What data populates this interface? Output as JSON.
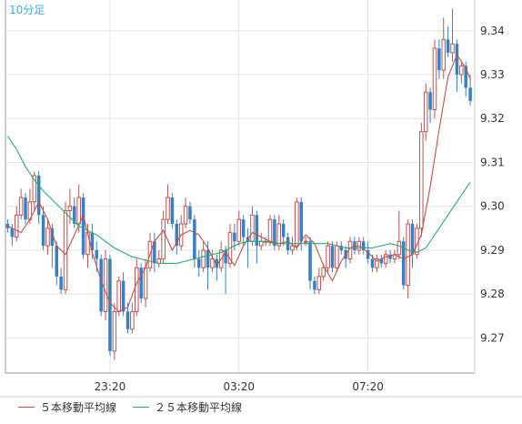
{
  "chart_data": {
    "type": "candlestick",
    "timeframe_label": "10分足",
    "y_ticks": [
      9.27,
      9.28,
      9.29,
      9.3,
      9.31,
      9.32,
      9.33,
      9.34
    ],
    "y_tick_labels": [
      "9.27",
      "9.28",
      "9.29",
      "9.30",
      "9.31",
      "9.32",
      "9.33",
      "9.34"
    ],
    "ylim": [
      9.262,
      9.347
    ],
    "x_tick_labels": [
      "23:20",
      "03:20",
      "07:20"
    ],
    "x_tick_candle_index": [
      23,
      52,
      81
    ],
    "n_candles": 105,
    "grid": true,
    "legend_position": "bottom-left",
    "colors": {
      "up": "#b85450",
      "down": "#3a7fc1",
      "ma5": "#c0504d",
      "ma25": "#2aa879",
      "timeframe": "#3aaed8"
    },
    "series": [
      {
        "name": "５本移動平均線",
        "color": "#c0504d",
        "points": [
          [
            0,
            9.2955
          ],
          [
            3,
            9.294
          ],
          [
            5,
            9.297
          ],
          [
            7,
            9.301
          ],
          [
            9,
            9.297
          ],
          [
            11,
            9.291
          ],
          [
            13,
            9.289
          ],
          [
            15,
            9.2935
          ],
          [
            17,
            9.298
          ],
          [
            19,
            9.2895
          ],
          [
            21,
            9.283
          ],
          [
            23,
            9.278
          ],
          [
            25,
            9.276
          ],
          [
            27,
            9.277
          ],
          [
            29,
            9.2825
          ],
          [
            31,
            9.286
          ],
          [
            33,
            9.292
          ],
          [
            35,
            9.2945
          ],
          [
            37,
            9.29
          ],
          [
            39,
            9.2935
          ],
          [
            41,
            9.2945
          ],
          [
            43,
            9.2935
          ],
          [
            45,
            9.2905
          ],
          [
            47,
            9.2865
          ],
          [
            49,
            9.2895
          ],
          [
            51,
            9.2865
          ],
          [
            53,
            9.291
          ],
          [
            55,
            9.294
          ],
          [
            57,
            9.293
          ],
          [
            59,
            9.292
          ],
          [
            61,
            9.2915
          ],
          [
            63,
            9.292
          ],
          [
            65,
            9.2905
          ],
          [
            67,
            9.2935
          ],
          [
            69,
            9.2915
          ],
          [
            71,
            9.2865
          ],
          [
            73,
            9.283
          ],
          [
            75,
            9.2875
          ],
          [
            77,
            9.2905
          ],
          [
            79,
            9.291
          ],
          [
            81,
            9.2895
          ],
          [
            83,
            9.2875
          ],
          [
            85,
            9.2885
          ],
          [
            87,
            9.289
          ],
          [
            89,
            9.288
          ],
          [
            91,
            9.289
          ],
          [
            93,
            9.2935
          ],
          [
            95,
            9.3045
          ],
          [
            97,
            9.3175
          ],
          [
            99,
            9.3295
          ],
          [
            101,
            9.3345
          ],
          [
            103,
            9.3315
          ],
          [
            104,
            9.329
          ]
        ]
      },
      {
        "name": "２５本移動平均線",
        "color": "#2aa879",
        "points": [
          [
            0,
            9.316
          ],
          [
            2,
            9.313
          ],
          [
            4,
            9.309
          ],
          [
            6,
            9.306
          ],
          [
            8,
            9.3035
          ],
          [
            10,
            9.3015
          ],
          [
            12,
            9.2995
          ],
          [
            14,
            9.2975
          ],
          [
            16,
            9.2955
          ],
          [
            18,
            9.2945
          ],
          [
            20,
            9.2935
          ],
          [
            22,
            9.292
          ],
          [
            24,
            9.2905
          ],
          [
            26,
            9.2895
          ],
          [
            28,
            9.2885
          ],
          [
            30,
            9.288
          ],
          [
            32,
            9.2875
          ],
          [
            34,
            9.287
          ],
          [
            36,
            9.287
          ],
          [
            38,
            9.287
          ],
          [
            40,
            9.2875
          ],
          [
            42,
            9.288
          ],
          [
            44,
            9.2885
          ],
          [
            46,
            9.289
          ],
          [
            48,
            9.2895
          ],
          [
            50,
            9.2905
          ],
          [
            52,
            9.2915
          ],
          [
            54,
            9.292
          ],
          [
            56,
            9.292
          ],
          [
            58,
            9.292
          ],
          [
            60,
            9.2915
          ],
          [
            62,
            9.2915
          ],
          [
            64,
            9.2915
          ],
          [
            66,
            9.2915
          ],
          [
            68,
            9.2915
          ],
          [
            70,
            9.2915
          ],
          [
            72,
            9.2915
          ],
          [
            74,
            9.291
          ],
          [
            76,
            9.2905
          ],
          [
            78,
            9.2905
          ],
          [
            80,
            9.2905
          ],
          [
            82,
            9.2905
          ],
          [
            84,
            9.291
          ],
          [
            86,
            9.2915
          ],
          [
            88,
            9.291
          ],
          [
            90,
            9.29
          ],
          [
            92,
            9.2895
          ],
          [
            94,
            9.2905
          ],
          [
            96,
            9.2935
          ],
          [
            98,
            9.2965
          ],
          [
            100,
            9.2995
          ],
          [
            102,
            9.3025
          ],
          [
            104,
            9.3055
          ]
        ]
      }
    ],
    "candles": [
      [
        9.296,
        9.295,
        9.297,
        9.294
      ],
      [
        9.295,
        9.293,
        9.296,
        9.291
      ],
      [
        9.293,
        9.298,
        9.3,
        9.292
      ],
      [
        9.298,
        9.302,
        9.304,
        9.297
      ],
      [
        9.302,
        9.297,
        9.303,
        9.296
      ],
      [
        9.297,
        9.301,
        9.304,
        9.296
      ],
      [
        9.301,
        9.307,
        9.308,
        9.299
      ],
      [
        9.307,
        9.298,
        9.308,
        9.296
      ],
      [
        9.298,
        9.291,
        9.3,
        9.29
      ],
      [
        9.291,
        9.295,
        9.297,
        9.289
      ],
      [
        9.295,
        9.291,
        9.296,
        9.286
      ],
      [
        9.291,
        9.284,
        9.292,
        9.282
      ],
      [
        9.284,
        9.281,
        9.286,
        9.28
      ],
      [
        9.281,
        9.299,
        9.301,
        9.28
      ],
      [
        9.299,
        9.3,
        9.304,
        9.296
      ],
      [
        9.3,
        9.296,
        9.302,
        9.295
      ],
      [
        9.296,
        9.302,
        9.305,
        9.294
      ],
      [
        9.302,
        9.289,
        9.303,
        9.288
      ],
      [
        9.289,
        9.294,
        9.296,
        9.286
      ],
      [
        9.294,
        9.29,
        9.296,
        9.288
      ],
      [
        9.29,
        9.288,
        9.292,
        9.285
      ],
      [
        9.288,
        9.276,
        9.289,
        9.275
      ],
      [
        9.276,
        9.288,
        9.29,
        9.274
      ],
      [
        9.288,
        9.267,
        9.289,
        9.266
      ],
      [
        9.267,
        9.276,
        9.278,
        9.265
      ],
      [
        9.276,
        9.283,
        9.284,
        9.275
      ],
      [
        9.283,
        9.276,
        9.285,
        9.275
      ],
      [
        9.276,
        9.272,
        9.278,
        9.271
      ],
      [
        9.272,
        9.276,
        9.278,
        9.271
      ],
      [
        9.276,
        9.286,
        9.288,
        9.275
      ],
      [
        9.286,
        9.279,
        9.287,
        9.278
      ],
      [
        9.279,
        9.286,
        9.288,
        9.277
      ],
      [
        9.286,
        9.292,
        9.294,
        9.285
      ],
      [
        9.292,
        9.287,
        9.294,
        9.285
      ],
      [
        9.287,
        9.288,
        9.29,
        9.286
      ],
      [
        9.288,
        9.297,
        9.299,
        9.287
      ],
      [
        9.297,
        9.302,
        9.305,
        9.296
      ],
      [
        9.302,
        9.296,
        9.303,
        9.295
      ],
      [
        9.296,
        9.291,
        9.297,
        9.289
      ],
      [
        9.291,
        9.296,
        9.298,
        9.29
      ],
      [
        9.296,
        9.3,
        9.302,
        9.295
      ],
      [
        9.3,
        9.297,
        9.301,
        9.296
      ],
      [
        9.297,
        9.288,
        9.298,
        9.286
      ],
      [
        9.288,
        9.286,
        9.29,
        9.284
      ],
      [
        9.286,
        9.29,
        9.292,
        9.285
      ],
      [
        9.29,
        9.286,
        9.292,
        9.281
      ],
      [
        9.286,
        9.288,
        9.29,
        9.285
      ],
      [
        9.288,
        9.286,
        9.289,
        9.283
      ],
      [
        9.286,
        9.29,
        9.292,
        9.285
      ],
      [
        9.29,
        9.287,
        9.291,
        9.28
      ],
      [
        9.287,
        9.294,
        9.296,
        9.286
      ],
      [
        9.294,
        9.292,
        9.296,
        9.29
      ],
      [
        9.292,
        9.297,
        9.299,
        9.291
      ],
      [
        9.297,
        9.293,
        9.298,
        9.291
      ],
      [
        9.293,
        9.292,
        9.295,
        9.286
      ],
      [
        9.292,
        9.298,
        9.3,
        9.291
      ],
      [
        9.298,
        9.291,
        9.299,
        9.287
      ],
      [
        9.291,
        9.292,
        9.294,
        9.29
      ],
      [
        9.292,
        9.292,
        9.293,
        9.291
      ],
      [
        9.292,
        9.297,
        9.298,
        9.291
      ],
      [
        9.297,
        9.291,
        9.298,
        9.29
      ],
      [
        9.291,
        9.296,
        9.298,
        9.29
      ],
      [
        9.296,
        9.293,
        9.297,
        9.291
      ],
      [
        9.293,
        9.29,
        9.294,
        9.289
      ],
      [
        9.29,
        9.291,
        9.293,
        9.289
      ],
      [
        9.291,
        9.301,
        9.302,
        9.29
      ],
      [
        9.301,
        9.292,
        9.302,
        9.29
      ],
      [
        9.292,
        9.292,
        9.293,
        9.291
      ],
      [
        9.292,
        9.283,
        9.293,
        9.281
      ],
      [
        9.283,
        9.281,
        9.284,
        9.28
      ],
      [
        9.281,
        9.284,
        9.286,
        9.28
      ],
      [
        9.284,
        9.286,
        9.287,
        9.283
      ],
      [
        9.286,
        9.291,
        9.292,
        9.285
      ],
      [
        9.291,
        9.286,
        9.292,
        9.285
      ],
      [
        9.286,
        9.291,
        9.292,
        9.285
      ],
      [
        9.291,
        9.29,
        9.292,
        9.289
      ],
      [
        9.29,
        9.288,
        9.291,
        9.286
      ],
      [
        9.288,
        9.292,
        9.293,
        9.287
      ],
      [
        9.292,
        9.29,
        9.293,
        9.289
      ],
      [
        9.29,
        9.292,
        9.293,
        9.289
      ],
      [
        9.292,
        9.29,
        9.293,
        9.289
      ],
      [
        9.29,
        9.288,
        9.292,
        9.287
      ],
      [
        9.288,
        9.286,
        9.289,
        9.285
      ],
      [
        9.286,
        9.288,
        9.289,
        9.285
      ],
      [
        9.288,
        9.287,
        9.289,
        9.286
      ],
      [
        9.287,
        9.289,
        9.29,
        9.286
      ],
      [
        9.289,
        9.288,
        9.29,
        9.287
      ],
      [
        9.288,
        9.289,
        9.29,
        9.287
      ],
      [
        9.289,
        9.292,
        9.299,
        9.288
      ],
      [
        9.292,
        9.282,
        9.293,
        9.281
      ],
      [
        9.282,
        9.296,
        9.297,
        9.279
      ],
      [
        9.296,
        9.289,
        9.297,
        9.286
      ],
      [
        9.289,
        9.295,
        9.296,
        9.288
      ],
      [
        9.295,
        9.317,
        9.319,
        9.293
      ],
      [
        9.317,
        9.326,
        9.328,
        9.315
      ],
      [
        9.326,
        9.322,
        9.327,
        9.319
      ],
      [
        9.322,
        9.336,
        9.338,
        9.32
      ],
      [
        9.336,
        9.331,
        9.338,
        9.329
      ],
      [
        9.331,
        9.338,
        9.343,
        9.329
      ],
      [
        9.338,
        9.335,
        9.341,
        9.334
      ],
      [
        9.335,
        9.337,
        9.345,
        9.333
      ],
      [
        9.337,
        9.33,
        9.338,
        9.326
      ],
      [
        9.33,
        9.332,
        9.333,
        9.328
      ],
      [
        9.332,
        9.327,
        9.333,
        9.325
      ],
      [
        9.327,
        9.324,
        9.33,
        9.323
      ]
    ]
  }
}
